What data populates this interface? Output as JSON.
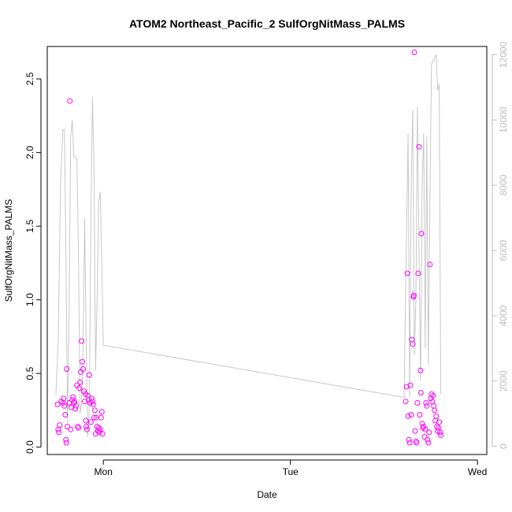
{
  "chart_data": {
    "type": "scatter",
    "title": "ATOM2 Northeast_Pacific_2 SulfOrgNitMass_PALMS",
    "xlabel": "Date",
    "ylabel": "SulfOrgNitMass_PALMS",
    "x_ticks": [
      {
        "label": "Mon",
        "value": 24
      },
      {
        "label": "Tue",
        "value": 48
      },
      {
        "label": "Wed",
        "value": 72
      }
    ],
    "xlim": [
      16.8,
      73.2
    ],
    "ylim": [
      -0.05,
      2.72
    ],
    "y_ticks": [
      0.0,
      0.5,
      1.0,
      1.5,
      2.0,
      2.5
    ],
    "y_tick_labels": [
      "0.0",
      "0.5",
      "1.0",
      "1.5",
      "2.0",
      "2.5"
    ],
    "y2lim": [
      -250,
      12250
    ],
    "y2_ticks": [
      0,
      2000,
      4000,
      6000,
      8000,
      10000,
      12000
    ],
    "y2_tick_labels": [
      "0",
      "2000",
      "4000",
      "6000",
      "8000",
      "10000",
      "12000"
    ],
    "grid": false,
    "colors": {
      "points": "#ff00ff",
      "altitude_line": "#c8c8c8",
      "right_axis": "#bdbdbd"
    },
    "series": [
      {
        "marker": "open-circle",
        "axis": "left",
        "points": [
          [
            18.1,
            0.29
          ],
          [
            18.2,
            0.12
          ],
          [
            18.3,
            0.1
          ],
          [
            18.4,
            0.15
          ],
          [
            18.6,
            0.31
          ],
          [
            18.8,
            0.3
          ],
          [
            18.9,
            0.33
          ],
          [
            19.0,
            0.28
          ],
          [
            19.1,
            0.22
          ],
          [
            19.2,
            0.05
          ],
          [
            19.25,
            0.03
          ],
          [
            19.3,
            0.53
          ],
          [
            19.4,
            0.14
          ],
          [
            19.6,
            0.3
          ],
          [
            19.7,
            2.35
          ],
          [
            19.8,
            0.12
          ],
          [
            19.9,
            0.27
          ],
          [
            20.0,
            0.32
          ],
          [
            20.1,
            0.34
          ],
          [
            20.2,
            0.3
          ],
          [
            20.3,
            0.31
          ],
          [
            20.4,
            0.26
          ],
          [
            20.5,
            0.28
          ],
          [
            20.6,
            0.42
          ],
          [
            20.7,
            0.14
          ],
          [
            20.8,
            0.13
          ],
          [
            20.9,
            0.4
          ],
          [
            21.0,
            0.44
          ],
          [
            21.1,
            0.51
          ],
          [
            21.2,
            0.72
          ],
          [
            21.3,
            0.58
          ],
          [
            21.4,
            0.53
          ],
          [
            21.5,
            0.38
          ],
          [
            21.6,
            0.31
          ],
          [
            21.7,
            0.36
          ],
          [
            21.75,
            0.18
          ],
          [
            21.8,
            0.14
          ],
          [
            21.9,
            0.12
          ],
          [
            22.0,
            0.35
          ],
          [
            22.1,
            0.32
          ],
          [
            22.2,
            0.49
          ],
          [
            22.3,
            0.3
          ],
          [
            22.4,
            0.17
          ],
          [
            22.5,
            0.33
          ],
          [
            22.6,
            0.31
          ],
          [
            22.7,
            0.29
          ],
          [
            22.8,
            0.2
          ],
          [
            22.9,
            0.25
          ],
          [
            23.0,
            0.09
          ],
          [
            23.1,
            0.2
          ],
          [
            23.2,
            0.14
          ],
          [
            23.3,
            0.11
          ],
          [
            23.4,
            0.13
          ],
          [
            23.5,
            0.1
          ],
          [
            23.6,
            0.12
          ],
          [
            23.7,
            0.2
          ],
          [
            23.8,
            0.24
          ],
          [
            23.9,
            0.09
          ],
          [
            62.8,
            0.31
          ],
          [
            62.9,
            0.41
          ],
          [
            63.0,
            1.18
          ],
          [
            63.1,
            0.21
          ],
          [
            63.2,
            0.05
          ],
          [
            63.3,
            0.03
          ],
          [
            63.4,
            0.42
          ],
          [
            63.5,
            0.22
          ],
          [
            63.6,
            0.73
          ],
          [
            63.7,
            0.7
          ],
          [
            63.8,
            1.02
          ],
          [
            63.85,
            1.03
          ],
          [
            63.9,
            2.68
          ],
          [
            64.0,
            0.11
          ],
          [
            64.1,
            0.04
          ],
          [
            64.2,
            0.03
          ],
          [
            64.3,
            0.3
          ],
          [
            64.4,
            1.18
          ],
          [
            64.5,
            2.04
          ],
          [
            64.6,
            0.22
          ],
          [
            64.7,
            0.52
          ],
          [
            64.75,
            0.37
          ],
          [
            64.8,
            1.45
          ],
          [
            64.9,
            0.16
          ],
          [
            65.0,
            0.13
          ],
          [
            65.1,
            0.14
          ],
          [
            65.2,
            0.07
          ],
          [
            65.3,
            0.12
          ],
          [
            65.4,
            0.3
          ],
          [
            65.5,
            0.28
          ],
          [
            65.6,
            0.05
          ],
          [
            65.7,
            0.03
          ],
          [
            65.8,
            0.1
          ],
          [
            65.9,
            1.24
          ],
          [
            66.0,
            0.33
          ],
          [
            66.1,
            0.36
          ],
          [
            66.2,
            0.31
          ],
          [
            66.3,
            0.35
          ],
          [
            66.4,
            0.28
          ],
          [
            66.5,
            0.25
          ],
          [
            66.6,
            0.18
          ],
          [
            66.7,
            0.21
          ],
          [
            66.8,
            0.14
          ],
          [
            66.9,
            0.11
          ],
          [
            67.0,
            0.13
          ],
          [
            67.1,
            0.17
          ],
          [
            67.2,
            0.1
          ],
          [
            67.3,
            0.08
          ]
        ]
      },
      {
        "marker": "line",
        "axis": "right",
        "points": [
          [
            17.9,
            1600
          ],
          [
            18.2,
            3200
          ],
          [
            18.5,
            8000
          ],
          [
            18.8,
            9700
          ],
          [
            19.0,
            9700
          ],
          [
            19.2,
            6000
          ],
          [
            19.4,
            700
          ],
          [
            19.6,
            4000
          ],
          [
            19.8,
            9500
          ],
          [
            20.0,
            10000
          ],
          [
            20.2,
            8900
          ],
          [
            20.4,
            8850
          ],
          [
            20.6,
            8800
          ],
          [
            20.8,
            6000
          ],
          [
            21.0,
            1000
          ],
          [
            21.2,
            1300
          ],
          [
            21.4,
            3000
          ],
          [
            21.6,
            7000
          ],
          [
            21.8,
            3000
          ],
          [
            22.0,
            300
          ],
          [
            22.2,
            1200
          ],
          [
            22.4,
            7000
          ],
          [
            22.6,
            10700
          ],
          [
            22.8,
            8500
          ],
          [
            23.0,
            2300
          ],
          [
            23.2,
            4500
          ],
          [
            23.4,
            7500
          ],
          [
            23.6,
            7800
          ],
          [
            23.8,
            5500
          ],
          [
            24.0,
            3100
          ],
          [
            62.6,
            1500
          ],
          [
            62.8,
            5000
          ],
          [
            63.1,
            9600
          ],
          [
            63.3,
            1500
          ],
          [
            63.5,
            8000
          ],
          [
            63.7,
            10300
          ],
          [
            63.9,
            2800
          ],
          [
            64.1,
            4500
          ],
          [
            64.3,
            10400
          ],
          [
            64.5,
            6000
          ],
          [
            64.7,
            2000
          ],
          [
            64.9,
            8000
          ],
          [
            65.1,
            9600
          ],
          [
            65.3,
            3000
          ],
          [
            65.5,
            9500
          ],
          [
            65.7,
            2500
          ],
          [
            65.9,
            7500
          ],
          [
            66.1,
            11700
          ],
          [
            66.3,
            11800
          ],
          [
            66.5,
            11900
          ],
          [
            66.7,
            12000
          ],
          [
            66.9,
            10900
          ],
          [
            67.1,
            11100
          ],
          [
            67.3,
            1600
          ]
        ]
      }
    ]
  }
}
